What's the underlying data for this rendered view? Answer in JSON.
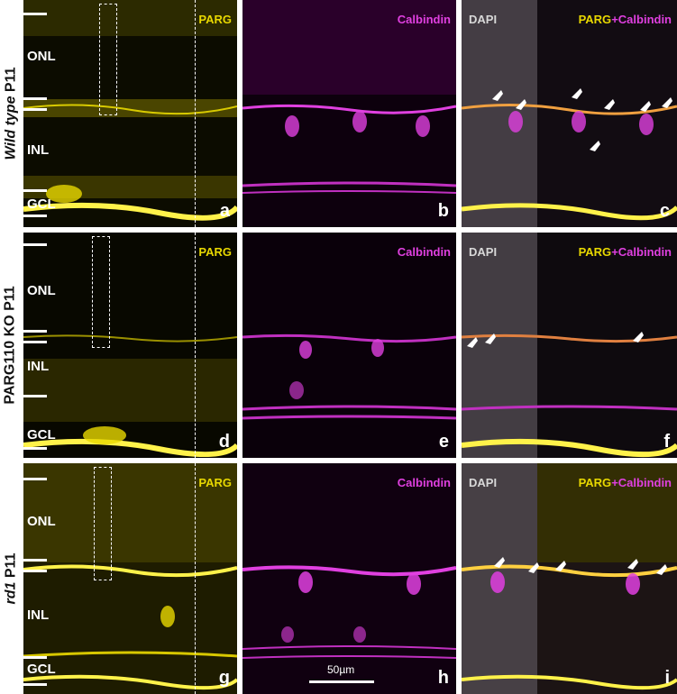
{
  "rows": [
    {
      "label_pre": "",
      "label_em": "Wild type",
      "label_post": " P11",
      "parg_tag": "PARG",
      "calb_tag": "Calbindin",
      "merge_dapi": "DAPI",
      "merge_parg": "PARG",
      "merge_plus": "+",
      "merge_calb": "Calbindin",
      "layers": {
        "onl": "ONL",
        "inl": "INL",
        "gcl": "GCL"
      },
      "letters": [
        "a",
        "b",
        "c"
      ]
    },
    {
      "label_pre": "PARG110 KO P11",
      "label_em": "",
      "label_post": "",
      "parg_tag": "PARG",
      "calb_tag": "Calbindin",
      "merge_dapi": "DAPI",
      "merge_parg": "PARG",
      "merge_plus": "+",
      "merge_calb": "Calbindin",
      "layers": {
        "onl": "ONL",
        "inl": "INL",
        "gcl": "GCL"
      },
      "letters": [
        "d",
        "e",
        "f"
      ]
    },
    {
      "label_pre": "",
      "label_em": "rd1",
      "label_post": " P11",
      "parg_tag": "PARG",
      "calb_tag": "Calbindin",
      "merge_dapi": "DAPI",
      "merge_parg": "PARG",
      "merge_plus": "+",
      "merge_calb": "Calbindin",
      "layers": {
        "onl": "ONL",
        "inl": "INL",
        "gcl": "GCL"
      },
      "letters": [
        "g",
        "h",
        "i"
      ]
    }
  ],
  "scale_bar": "50µm",
  "colors": {
    "parg": "#e8d800",
    "calbindin": "#e040e0",
    "dapi": "#d8d8d8",
    "white": "#ffffff"
  }
}
